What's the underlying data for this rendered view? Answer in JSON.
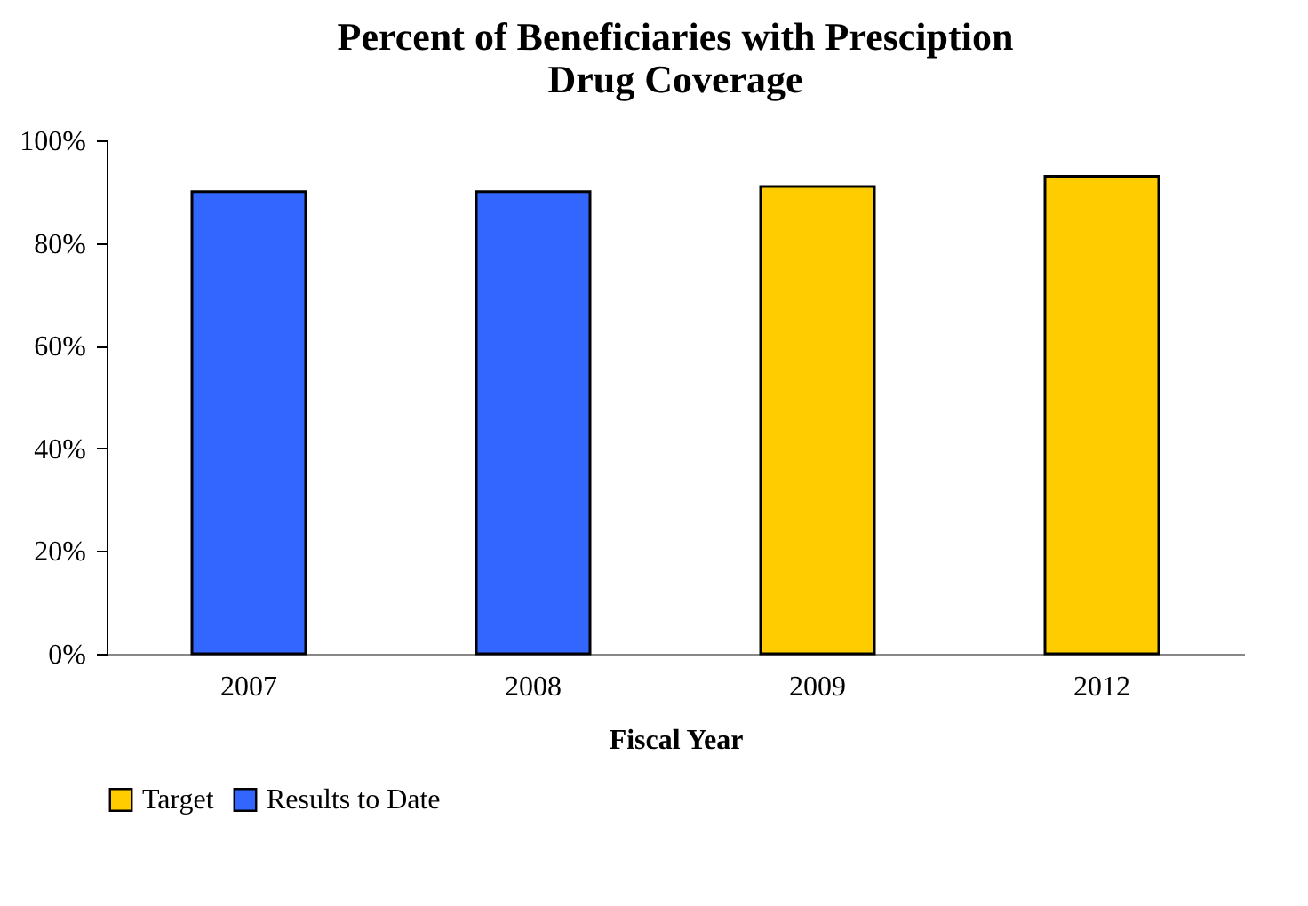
{
  "chart_data": {
    "type": "bar",
    "title": "Percent of Beneficiaries with Presciption Drug Coverage",
    "xlabel": "Fiscal Year",
    "categories": [
      "2007",
      "2008",
      "2009",
      "2012"
    ],
    "series": [
      {
        "name": "Target",
        "color": "#ffcc00",
        "values": [
          null,
          null,
          91,
          93
        ]
      },
      {
        "name": "Results to Date",
        "color": "#3366ff",
        "values": [
          90,
          90,
          null,
          null
        ]
      }
    ],
    "ylim": [
      0,
      100
    ],
    "yticks": [
      {
        "value": 0,
        "label": "0%"
      },
      {
        "value": 20,
        "label": "20%"
      },
      {
        "value": 40,
        "label": "40%"
      },
      {
        "value": 60,
        "label": "60%"
      },
      {
        "value": 80,
        "label": "80%"
      },
      {
        "value": 100,
        "label": "100%"
      }
    ],
    "grid": false,
    "legend": "bottom"
  }
}
